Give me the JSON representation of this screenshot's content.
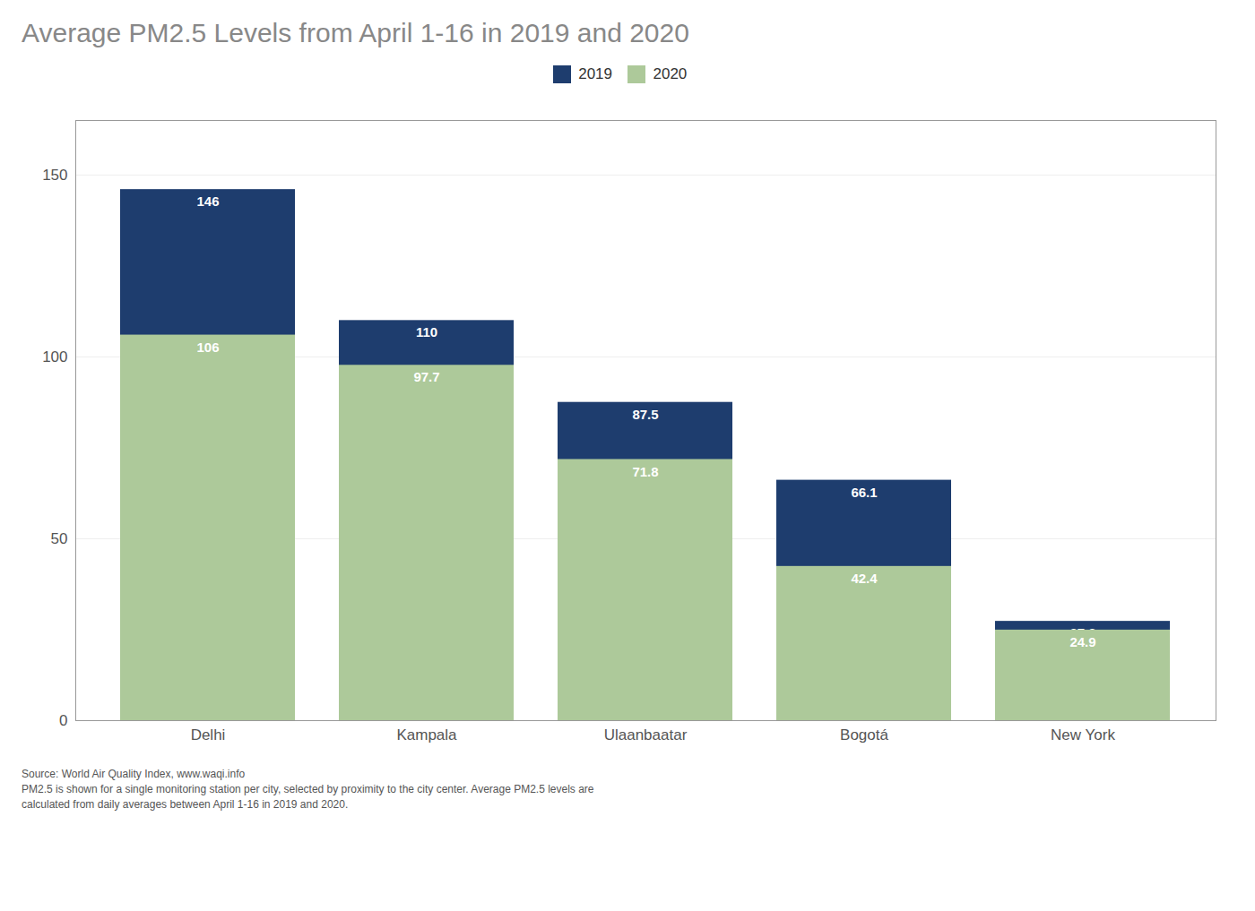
{
  "chart_data": {
    "type": "bar",
    "title": "Average PM2.5 Levels from April 1-16 in 2019 and 2020",
    "categories": [
      "Delhi",
      "Kampala",
      "Ulaanbaatar",
      "Bogotá",
      "New York"
    ],
    "series": [
      {
        "name": "2019",
        "color": "#1e3d6e",
        "values": [
          146,
          110,
          87.5,
          66.1,
          27.3
        ]
      },
      {
        "name": "2020",
        "color": "#adc99a",
        "values": [
          106,
          97.7,
          71.8,
          42.4,
          24.9
        ]
      }
    ],
    "ylim": [
      0,
      165
    ],
    "yticks": [
      0,
      50,
      100,
      150
    ],
    "grid": true,
    "legend": "top",
    "data_labels": true,
    "annotations": [
      "Source: World Air Quality Index, www.waqi.info",
      "PM2.5 is shown for a single monitoring station per city, selected by proximity to the city center.  Average PM2.5 levels are",
      "calculated from daily averages between April 1-16 in 2019 and 2020."
    ]
  }
}
